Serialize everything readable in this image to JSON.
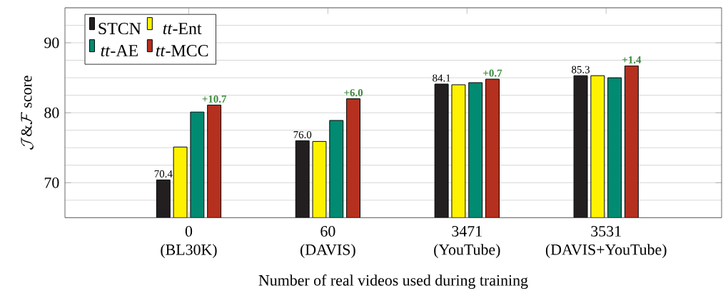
{
  "chart_data": {
    "type": "bar",
    "xlabel": "Number of real videos used during training",
    "ylabel": "\\mathcal{J}\\&\\mathcal{F}\\ \\mathrm{score}",
    "categories": [
      "0 (BL30K)",
      "60 (DAVIS)",
      "3471 (YouTube)",
      "3531 (DAVIS+YouTube)"
    ],
    "ylim": [
      65,
      95
    ],
    "yticks": [
      70,
      80,
      90
    ],
    "grid": "y",
    "legend": "top left",
    "series": [
      {
        "name": "STCN",
        "color": "#231f20",
        "values": [
          70.4,
          76.0,
          84.1,
          85.3
        ],
        "value_labels": [
          "70.4",
          "76.0",
          "84.1",
          "85.3"
        ]
      },
      {
        "name": "*tt*-Ent",
        "color": "#fff200",
        "values": [
          75.1,
          75.9,
          84.0,
          85.3
        ]
      },
      {
        "name": "*tt*-AE",
        "color": "#008b72",
        "values": [
          80.1,
          78.9,
          84.3,
          85.0
        ]
      },
      {
        "name": "*tt*-MCC",
        "color": "#b5301e",
        "values": [
          81.1,
          82.0,
          84.8,
          86.7
        ]
      }
    ],
    "annotations": [
      "+10.7",
      "+6.0",
      "+0.7",
      "+1.4"
    ]
  }
}
